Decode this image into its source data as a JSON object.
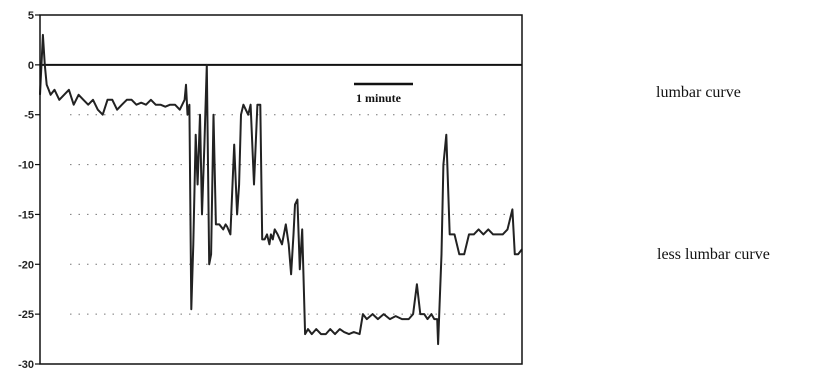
{
  "chart_data": {
    "type": "line",
    "title": "",
    "xlabel": "",
    "ylabel": "",
    "ylim": [
      -30,
      5
    ],
    "y_ticks": [
      "5",
      "0",
      "-5",
      "-10",
      "-15",
      "-20",
      "-25",
      "-30"
    ],
    "y_tick_values": [
      5,
      0,
      -5,
      -10,
      -15,
      -20,
      -25,
      -30
    ],
    "reference_line": 0,
    "grid": "dotted-horizontal",
    "time_scale_label": "1 minute",
    "x_range": [
      0,
      100
    ],
    "series": [
      {
        "x": [
          0,
          0.6,
          1.0,
          1.4,
          1.8,
          2.2,
          3,
          4,
          5,
          6,
          7,
          8,
          9,
          10,
          11,
          12,
          13,
          14,
          15,
          16,
          17,
          18,
          19,
          20,
          21,
          22,
          23,
          24,
          25,
          26,
          27,
          28,
          29,
          30,
          30.3,
          30.6,
          31,
          31.4,
          31.8,
          32.3,
          32.7,
          33.2,
          33.6,
          34.1,
          34.6,
          35.1,
          35.5,
          36,
          36.5,
          37.2,
          38,
          38.5,
          38.8,
          39.5,
          40.3,
          40.9,
          41.3,
          41.7,
          42.2,
          42.7,
          43.2,
          43.7,
          44.4,
          45.1,
          45.7,
          46.1,
          46.6,
          47.1,
          47.6,
          47.9,
          48.3,
          48.7,
          49.3,
          50.2,
          51,
          51.6,
          52.1,
          52.6,
          52.9,
          53.4,
          53.9,
          54.4,
          55,
          55.6,
          56.4,
          57.3,
          58.3,
          59.3,
          60.2,
          61.2,
          62.2,
          63.1,
          64.1,
          65.1,
          66.3,
          67,
          67.8,
          69,
          70.1,
          71.3,
          72.6,
          73.8,
          75.1,
          76.5,
          77.4,
          78.2,
          78.9,
          79.7,
          80.4,
          81.2,
          81.8,
          82.4,
          82.6,
          82.9,
          83.3,
          83.7,
          84.3,
          85,
          86,
          87,
          88,
          89,
          90,
          91,
          92,
          93,
          94,
          95,
          96,
          97,
          98,
          98.5,
          99.2,
          100
        ],
        "y": [
          -3,
          3,
          0,
          -2,
          -2.5,
          -3,
          -2.5,
          -3.5,
          -3,
          -2.5,
          -4,
          -3,
          -3.5,
          -4,
          -3.5,
          -4.5,
          -5,
          -3.5,
          -3.5,
          -4.5,
          -4,
          -3.5,
          -3.5,
          -4,
          -3.8,
          -4,
          -3.5,
          -4,
          -4,
          -4.2,
          -4,
          -4,
          -4.5,
          -3.5,
          -2,
          -5,
          -4,
          -24.5,
          -18,
          -7,
          -12,
          -5,
          -15,
          -8,
          0,
          -20,
          -19,
          -5,
          -16,
          -16,
          -16.5,
          -16,
          -16.2,
          -17,
          -8,
          -15,
          -12,
          -5,
          -4,
          -4.5,
          -5,
          -4,
          -12,
          -4,
          -4,
          -17.5,
          -17.5,
          -17,
          -18,
          -17,
          -17.5,
          -16.5,
          -17,
          -18,
          -16,
          -18,
          -21,
          -17,
          -14,
          -13.5,
          -20.5,
          -16.5,
          -27,
          -26.5,
          -27,
          -26.5,
          -27,
          -27,
          -26.5,
          -27,
          -26.5,
          -26.8,
          -27,
          -26.8,
          -27,
          -25,
          -25.5,
          -25,
          -25.5,
          -25,
          -25.5,
          -25.2,
          -25.5,
          -25.5,
          -25,
          -22,
          -25,
          -25,
          -25.5,
          -25,
          -25.5,
          -25.5,
          -28,
          -24,
          -19,
          -10,
          -7,
          -17,
          -17,
          -19,
          -19,
          -17,
          -17,
          -16.5,
          -17,
          -16.5,
          -17,
          -17,
          -17,
          -16.5,
          -14.5,
          -19,
          -19,
          -18.5
        ]
      }
    ],
    "annotations": [
      "lumbar curve",
      "less lumbar curve"
    ]
  }
}
